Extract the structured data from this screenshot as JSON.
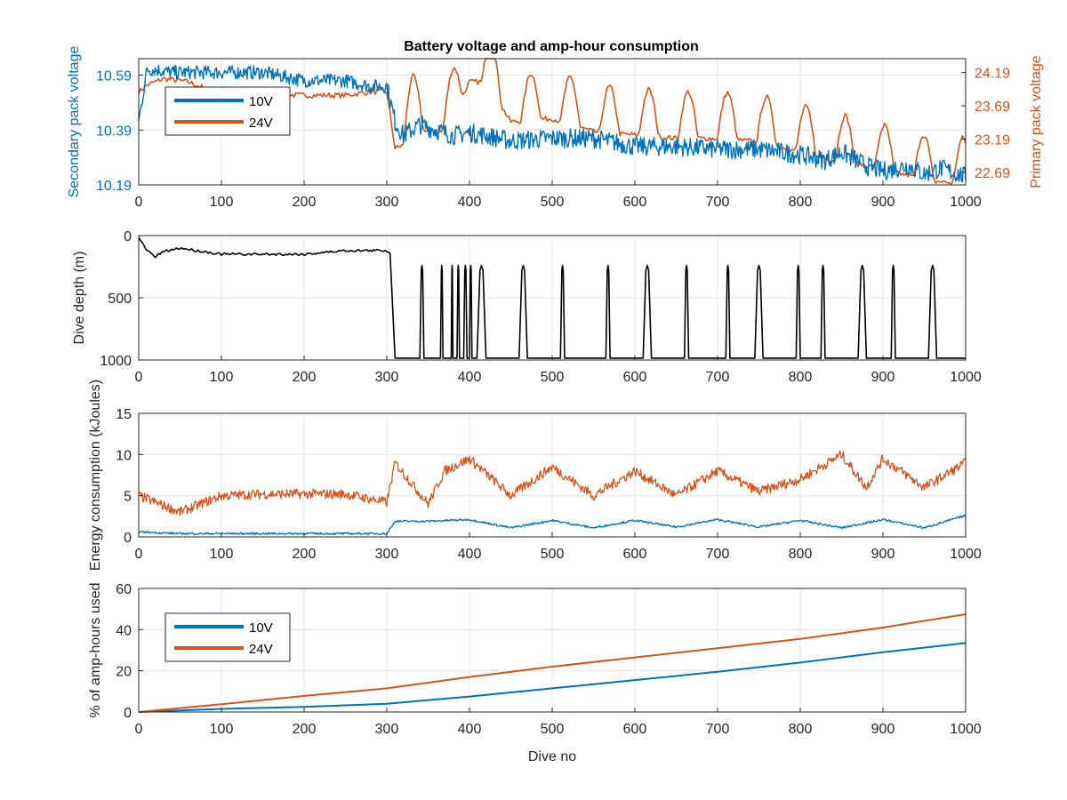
{
  "figure": {
    "title": "Battery voltage and amp-hour consumption",
    "colors": {
      "blue": "#0072BD",
      "orange": "#D95319",
      "black": "#000000",
      "axis": "#262626",
      "grid": "#e6e6e6"
    }
  },
  "chart_data": [
    {
      "type": "line",
      "title": "Battery voltage and amp-hour consumption",
      "xlabel": "",
      "ylabel": "Secondary pack voltage",
      "ylabel_right": "Primary pack voltage",
      "xlim": [
        0,
        1000
      ],
      "ylim": [
        10.19,
        10.65
      ],
      "ylim_right": [
        22.5,
        24.4
      ],
      "xticks": [
        "0",
        "100",
        "200",
        "300",
        "400",
        "500",
        "600",
        "700",
        "800",
        "900",
        "1000"
      ],
      "yticks": [
        "10.19",
        "10.39",
        "10.59"
      ],
      "yticks_right": [
        "22.69",
        "23.19",
        "23.69",
        "24.19"
      ],
      "grid": true,
      "legend": {
        "position": "top-left",
        "entries": [
          "10V",
          "24V"
        ]
      },
      "series": [
        {
          "name": "10V",
          "axis": "left",
          "color": "#0072BD",
          "x": [
            0,
            10,
            20,
            40,
            60,
            80,
            100,
            150,
            200,
            250,
            280,
            300,
            310,
            320,
            340,
            360,
            380,
            400,
            420,
            450,
            500,
            550,
            600,
            650,
            700,
            750,
            800,
            830,
            850,
            880,
            900,
            930,
            950,
            970,
            1000
          ],
          "y": [
            10.42,
            10.61,
            10.61,
            10.6,
            10.6,
            10.6,
            10.6,
            10.6,
            10.57,
            10.57,
            10.55,
            10.55,
            10.42,
            10.37,
            10.41,
            10.39,
            10.37,
            10.38,
            10.37,
            10.35,
            10.36,
            10.36,
            10.33,
            10.33,
            10.32,
            10.32,
            10.3,
            10.28,
            10.31,
            10.26,
            10.24,
            10.26,
            10.23,
            10.25,
            10.22
          ]
        },
        {
          "name": "24V",
          "axis": "right",
          "color": "#D95319",
          "x": [
            0,
            10,
            30,
            60,
            100,
            150,
            200,
            250,
            280,
            300,
            310,
            320,
            330,
            350,
            370,
            400,
            420,
            450,
            500,
            550,
            600,
            650,
            700,
            750,
            800,
            830,
            850,
            880,
            900,
            930,
            950,
            970,
            1000
          ],
          "y": [
            23.9,
            24.0,
            24.1,
            24.05,
            23.85,
            23.85,
            23.85,
            23.85,
            23.9,
            23.9,
            23.05,
            23.1,
            23.45,
            23.3,
            23.3,
            24.05,
            24.05,
            23.45,
            23.5,
            23.3,
            23.25,
            23.2,
            23.2,
            23.15,
            23.0,
            22.9,
            22.85,
            22.8,
            22.7,
            22.65,
            22.55,
            22.55,
            22.5
          ]
        }
      ]
    },
    {
      "type": "line",
      "xlabel": "",
      "ylabel": "Dive depth (m)",
      "xlim": [
        0,
        1000
      ],
      "ylim": [
        1000,
        0
      ],
      "xticks": [
        "0",
        "100",
        "200",
        "300",
        "400",
        "500",
        "600",
        "700",
        "800",
        "900",
        "1000"
      ],
      "yticks": [
        "0",
        "500",
        "1000"
      ],
      "grid": true,
      "series": [
        {
          "name": "",
          "color": "#000000",
          "x": [
            0,
            10,
            20,
            30,
            50,
            100,
            150,
            200,
            250,
            300,
            305
          ],
          "y": [
            20,
            120,
            170,
            130,
            100,
            150,
            150,
            150,
            120,
            120,
            150
          ]
        }
      ],
      "dive_cycles": {
        "shallow_depth": 180,
        "bottom_depth": 985,
        "cycles": [
          [
            310,
            340
          ],
          [
            345,
            365
          ],
          [
            368,
            378
          ],
          [
            380,
            385
          ],
          [
            388,
            393
          ],
          [
            397,
            400
          ],
          [
            403,
            409
          ],
          [
            420,
            460
          ],
          [
            470,
            510
          ],
          [
            515,
            565
          ],
          [
            570,
            610
          ],
          [
            620,
            660
          ],
          [
            665,
            710
          ],
          [
            715,
            745
          ],
          [
            755,
            795
          ],
          [
            800,
            825
          ],
          [
            830,
            870
          ],
          [
            880,
            910
          ],
          [
            915,
            955
          ],
          [
            965,
            990
          ]
        ]
      }
    },
    {
      "type": "line",
      "xlabel": "",
      "ylabel": "Energy consumption (kJoules)",
      "xlim": [
        0,
        1000
      ],
      "ylim": [
        0,
        15
      ],
      "xticks": [
        "0",
        "100",
        "200",
        "300",
        "400",
        "500",
        "600",
        "700",
        "800",
        "900",
        "1000"
      ],
      "yticks": [
        "0",
        "5",
        "10",
        "15"
      ],
      "grid": true,
      "series": [
        {
          "name": "10V",
          "color": "#0072BD",
          "x": [
            0,
            50,
            100,
            150,
            200,
            250,
            300,
            310,
            350,
            400,
            450,
            500,
            550,
            600,
            650,
            700,
            750,
            800,
            850,
            900,
            950,
            1000
          ],
          "y": [
            0.6,
            0.4,
            0.4,
            0.4,
            0.4,
            0.4,
            0.4,
            1.9,
            1.9,
            2.1,
            1.1,
            2.0,
            1.1,
            2.0,
            1.2,
            2.1,
            1.2,
            2.0,
            1.1,
            2.1,
            1.1,
            2.6
          ]
        },
        {
          "name": "24V",
          "color": "#D95319",
          "x": [
            0,
            50,
            100,
            150,
            200,
            250,
            300,
            310,
            350,
            370,
            400,
            450,
            500,
            550,
            600,
            650,
            700,
            750,
            800,
            850,
            880,
            900,
            950,
            1000
          ],
          "y": [
            5.0,
            3.0,
            5.0,
            5.2,
            5.2,
            5.2,
            4.2,
            9.0,
            4.0,
            8.0,
            9.5,
            5.0,
            8.5,
            5.0,
            8.0,
            5.0,
            8.0,
            5.5,
            7.0,
            10.0,
            6.0,
            9.5,
            6.0,
            9.0
          ]
        }
      ]
    },
    {
      "type": "line",
      "xlabel": "Dive no",
      "ylabel": "% of amp-hours used",
      "xlim": [
        0,
        1000
      ],
      "ylim": [
        0,
        60
      ],
      "xticks": [
        "0",
        "100",
        "200",
        "300",
        "400",
        "500",
        "600",
        "700",
        "800",
        "900",
        "1000"
      ],
      "yticks": [
        "0",
        "20",
        "40",
        "60"
      ],
      "grid": true,
      "legend": {
        "position": "top-left",
        "entries": [
          "10V",
          "24V"
        ]
      },
      "series": [
        {
          "name": "10V",
          "color": "#0072BD",
          "x": [
            0,
            100,
            200,
            300,
            400,
            500,
            600,
            700,
            800,
            900,
            1000
          ],
          "y": [
            0,
            1.5,
            2.5,
            4,
            7.5,
            11.5,
            15.5,
            19.5,
            24,
            29,
            33.5
          ]
        },
        {
          "name": "24V",
          "color": "#D95319",
          "x": [
            0,
            100,
            200,
            300,
            400,
            500,
            600,
            700,
            800,
            900,
            1000
          ],
          "y": [
            0,
            3.8,
            7.8,
            11.5,
            17,
            22,
            26.5,
            31,
            35.5,
            41,
            47.5
          ]
        }
      ]
    }
  ]
}
